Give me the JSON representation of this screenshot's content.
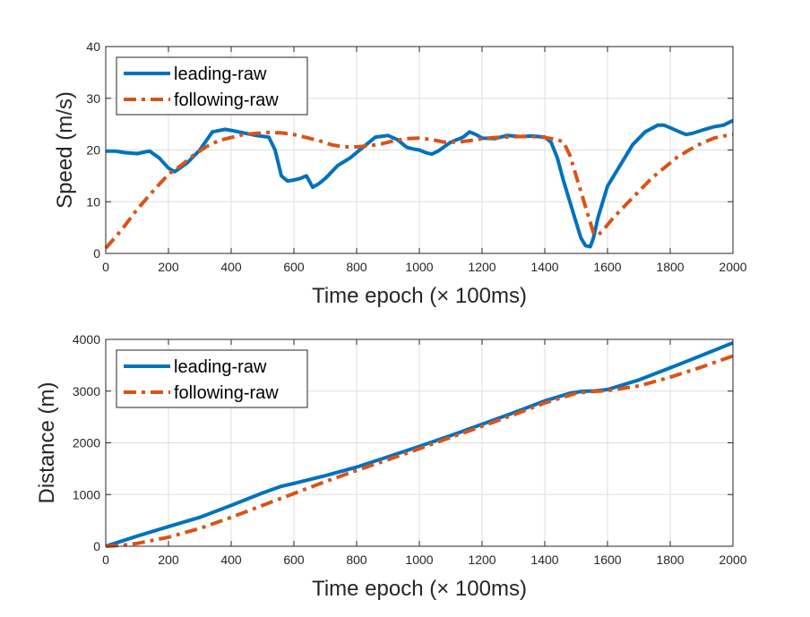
{
  "chart_data": [
    {
      "type": "line",
      "title": "",
      "xlabel": "Time epoch (× 100ms)",
      "ylabel": "Speed (m/s)",
      "xlim": [
        0,
        2000
      ],
      "ylim": [
        0,
        40
      ],
      "xticks": [
        "0",
        "200",
        "400",
        "600",
        "800",
        "1000",
        "1200",
        "1400",
        "1600",
        "1800",
        "2000"
      ],
      "yticks": [
        "0",
        "10",
        "20",
        "30",
        "40"
      ],
      "grid": true,
      "legend_position": "top-left",
      "series": [
        {
          "name": "leading-raw",
          "color": "#0072BD",
          "style": "solid",
          "x": [
            0,
            30,
            60,
            100,
            140,
            170,
            200,
            220,
            260,
            300,
            340,
            380,
            400,
            440,
            480,
            520,
            540,
            560,
            580,
            600,
            620,
            640,
            660,
            680,
            700,
            740,
            780,
            820,
            860,
            900,
            930,
            960,
            980,
            1000,
            1020,
            1040,
            1060,
            1100,
            1140,
            1160,
            1180,
            1200,
            1240,
            1280,
            1320,
            1360,
            1400,
            1420,
            1440,
            1460,
            1480,
            1500,
            1515,
            1530,
            1545,
            1555,
            1570,
            1600,
            1640,
            1680,
            1720,
            1760,
            1780,
            1800,
            1830,
            1850,
            1870,
            1900,
            1940,
            1970,
            2000
          ],
          "y": [
            19.8,
            19.8,
            19.5,
            19.3,
            19.8,
            18.5,
            16.5,
            15.8,
            17.5,
            20,
            23.5,
            24,
            23.8,
            23.3,
            22.8,
            22.5,
            20,
            15,
            14,
            14.2,
            14.5,
            15,
            12.8,
            13.5,
            14.5,
            17,
            18.5,
            20.5,
            22.5,
            22.8,
            22,
            20.5,
            20.2,
            20,
            19.5,
            19.2,
            19.8,
            21.5,
            22.5,
            23.5,
            23,
            22.3,
            22.2,
            22.8,
            22.6,
            22.7,
            22.5,
            21.5,
            18.5,
            14,
            10,
            6,
            3,
            1.5,
            1.3,
            3,
            7,
            13,
            17,
            21,
            23.5,
            24.8,
            24.8,
            24.3,
            23.5,
            23,
            23.2,
            23.8,
            24.5,
            24.8,
            25.7
          ]
        },
        {
          "name": "following-raw",
          "color": "#D95319",
          "style": "dashdot",
          "x": [
            0,
            50,
            100,
            150,
            200,
            240,
            280,
            320,
            360,
            400,
            440,
            480,
            520,
            560,
            600,
            640,
            680,
            720,
            760,
            800,
            840,
            880,
            920,
            960,
            1000,
            1040,
            1080,
            1120,
            1160,
            1200,
            1240,
            1280,
            1320,
            1360,
            1400,
            1440,
            1460,
            1480,
            1500,
            1520,
            1540,
            1555,
            1570,
            1590,
            1620,
            1660,
            1700,
            1740,
            1780,
            1820,
            1860,
            1900,
            1940,
            1980,
            2000
          ],
          "y": [
            1,
            4.5,
            8.5,
            12,
            15.3,
            17,
            19,
            20.6,
            21.8,
            22.4,
            23,
            23.2,
            23.4,
            23.3,
            23,
            22.4,
            21.8,
            21,
            20.6,
            20.6,
            20.8,
            21.2,
            21.8,
            22.2,
            22.3,
            22,
            21.5,
            21.5,
            21.8,
            22.2,
            22.4,
            22.5,
            22.6,
            22.6,
            22.4,
            22,
            21.5,
            19,
            15,
            11,
            7,
            4,
            3.5,
            4.8,
            7,
            9.5,
            12,
            14.5,
            16.5,
            18.5,
            20,
            21.3,
            22.3,
            22.8,
            23
          ]
        }
      ]
    },
    {
      "type": "line",
      "title": "",
      "xlabel": "Time epoch (× 100ms)",
      "ylabel": "Distance (m)",
      "xlim": [
        0,
        2000
      ],
      "ylim": [
        0,
        4000
      ],
      "xticks": [
        "0",
        "200",
        "400",
        "600",
        "800",
        "1000",
        "1200",
        "1400",
        "1600",
        "1800",
        "2000"
      ],
      "yticks": [
        "0",
        "1000",
        "2000",
        "3000",
        "4000"
      ],
      "grid": true,
      "legend_position": "top-left",
      "series": [
        {
          "name": "leading-raw",
          "color": "#0072BD",
          "style": "solid",
          "x": [
            0,
            100,
            200,
            300,
            400,
            500,
            560,
            600,
            700,
            800,
            900,
            1000,
            1100,
            1200,
            1300,
            1400,
            1480,
            1520,
            1560,
            1600,
            1700,
            1800,
            1900,
            2000
          ],
          "y": [
            0,
            195,
            380,
            560,
            790,
            1030,
            1160,
            1215,
            1365,
            1530,
            1730,
            1930,
            2140,
            2360,
            2580,
            2810,
            2960,
            2995,
            3005,
            3030,
            3215,
            3450,
            3690,
            3935
          ]
        },
        {
          "name": "following-raw",
          "color": "#D95319",
          "style": "dashdot",
          "x": [
            0,
            50,
            100,
            200,
            300,
            400,
            500,
            600,
            700,
            800,
            900,
            1000,
            1100,
            1200,
            1300,
            1400,
            1500,
            1550,
            1600,
            1700,
            1800,
            1900,
            2000
          ],
          "y": [
            0,
            15,
            55,
            175,
            345,
            560,
            790,
            1020,
            1250,
            1465,
            1675,
            1885,
            2105,
            2320,
            2540,
            2770,
            2960,
            2990,
            3010,
            3100,
            3270,
            3465,
            3680
          ]
        }
      ]
    }
  ]
}
